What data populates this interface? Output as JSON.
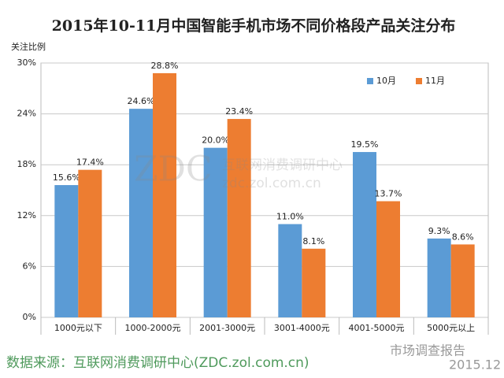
{
  "chart_data": {
    "type": "bar",
    "title": "2015年10-11月中国智能手机市场不同价格段产品关注分布",
    "y_label": "关注比例",
    "categories": [
      "1000元以下",
      "1000-2000元",
      "2001-3000元",
      "3001-4000元",
      "4001-5000元",
      "5000元以上"
    ],
    "series": [
      {
        "name": "10月",
        "color": "#5b9bd5",
        "values": [
          15.6,
          24.6,
          20.0,
          11.0,
          19.5,
          9.3
        ],
        "value_labels": [
          "15.6%",
          "24.6%",
          "20.0%",
          "11.0%",
          "19.5%",
          "9.3%"
        ]
      },
      {
        "name": "11月",
        "color": "#ed7d31",
        "values": [
          17.4,
          28.8,
          23.4,
          8.1,
          13.7,
          8.6
        ],
        "value_labels": [
          "17.4%",
          "28.8%",
          "23.4%",
          "8.1%",
          "13.7%",
          "8.6%"
        ]
      }
    ],
    "ylim": [
      0,
      30
    ],
    "yticks": [
      {
        "value": 0,
        "label": "0%"
      },
      {
        "value": 6,
        "label": "6%"
      },
      {
        "value": 12,
        "label": "12%"
      },
      {
        "value": 18,
        "label": "18%"
      },
      {
        "value": 24,
        "label": "24%"
      },
      {
        "value": 30,
        "label": "30%"
      }
    ],
    "grid": true,
    "legend": "top-right",
    "watermark": [
      "ZDC",
      "互联网消费调研中心",
      "zdc.zol.com.cn"
    ],
    "source": "数据来源：互联网消费调研中心(ZDC.zol.com.cn)",
    "brand": "市场调查报告",
    "date": "2015.12"
  }
}
